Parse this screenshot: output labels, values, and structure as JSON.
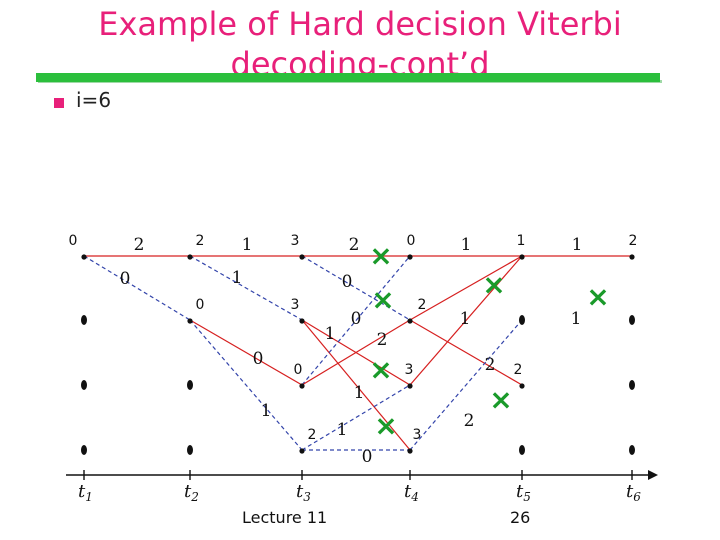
{
  "slide": {
    "title_line1": "Example of Hard decision Viterbi",
    "title_line2": "decoding-cont’d",
    "bullet": "i=6",
    "footer_left": "Lecture 11",
    "footer_right": "26",
    "accent_color": "#e8207a",
    "bar_color": "#2bbf3c"
  },
  "trellis": {
    "time_labels": [
      "t1",
      "t2",
      "t3",
      "t4",
      "t5",
      "t6"
    ],
    "path_metrics": [
      {
        "time": 1,
        "state": 0,
        "value": "0"
      },
      {
        "time": 2,
        "state": 0,
        "value": "2"
      },
      {
        "time": 2,
        "state": 1,
        "value": "0"
      },
      {
        "time": 3,
        "state": 0,
        "value": "3"
      },
      {
        "time": 3,
        "state": 1,
        "value": "3"
      },
      {
        "time": 3,
        "state": 2,
        "value": "0"
      },
      {
        "time": 3,
        "state": 3,
        "value": "2"
      },
      {
        "time": 4,
        "state": 0,
        "value": "0"
      },
      {
        "time": 4,
        "state": 1,
        "value": "2"
      },
      {
        "time": 4,
        "state": 2,
        "value": "3"
      },
      {
        "time": 4,
        "state": 3,
        "value": "3"
      },
      {
        "time": 5,
        "state": 0,
        "value": "1"
      },
      {
        "time": 5,
        "state": 2,
        "value": "2"
      },
      {
        "time": 6,
        "state": 0,
        "value": "2"
      }
    ],
    "branch_labels": [
      "2",
      "0",
      "1",
      "1",
      "2",
      "0",
      "0",
      "1",
      "0",
      "2",
      "1",
      "1",
      "2",
      "1",
      "1",
      "1",
      "0",
      "2",
      "1",
      "1"
    ],
    "eliminated_marker": "×",
    "colors": {
      "survivor": "#d62020",
      "discarded": "#3344aa",
      "node": "#111111",
      "eliminated": "#1a9a2a"
    }
  }
}
